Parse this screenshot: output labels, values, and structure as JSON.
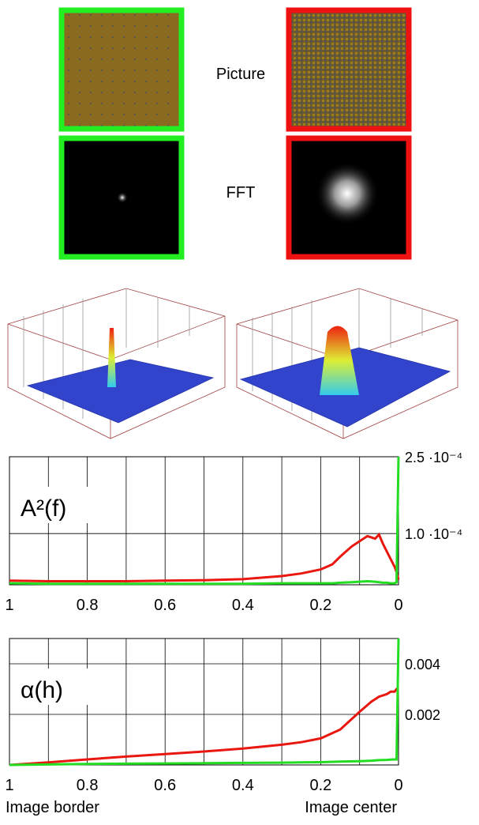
{
  "labels": {
    "picture": "Picture",
    "fft": "FFT"
  },
  "chart_data": [
    {
      "type": "line",
      "title": "A²(f)",
      "x": [
        1,
        0.9,
        0.8,
        0.7,
        0.6,
        0.5,
        0.4,
        0.3,
        0.25,
        0.2,
        0.17,
        0.15,
        0.12,
        0.1,
        0.08,
        0.06,
        0.05,
        0.04,
        0.03,
        0.02,
        0.01,
        0.005,
        0
      ],
      "series": [
        {
          "name": "red",
          "color": "#e8170f",
          "values": [
            8e-06,
            7e-06,
            7e-06,
            7e-06,
            8e-06,
            9e-06,
            1.1e-05,
            1.7e-05,
            2.2e-05,
            3e-05,
            4e-05,
            5.5e-05,
            7.5e-05,
            8.5e-05,
            9.5e-05,
            9e-05,
            9.8e-05,
            8e-05,
            6.5e-05,
            5e-05,
            3.5e-05,
            2.5e-05,
            1e-05
          ]
        },
        {
          "name": "green",
          "color": "#22dd22",
          "values": [
            3e-06,
            2e-06,
            2e-06,
            2e-06,
            2e-06,
            2e-06,
            2e-06,
            3e-06,
            3e-06,
            3e-06,
            3e-06,
            4e-06,
            5e-06,
            6e-06,
            7e-06,
            6e-06,
            5e-06,
            4e-06,
            4e-06,
            3e-06,
            3e-06,
            5e-06,
            0.00025
          ]
        }
      ],
      "xlim": [
        1,
        0
      ],
      "xticks": [
        1,
        0.8,
        0.6,
        0.4,
        0.2,
        0
      ],
      "ylim": [
        0,
        0.00025
      ],
      "yticks": [
        {
          "value": 0.00025,
          "label": "2.5 ·10⁻⁴"
        },
        {
          "value": 0.0001,
          "label": "1.0 ·10⁻⁴"
        }
      ],
      "grid": true
    },
    {
      "type": "line",
      "title": "α(h)",
      "x": [
        1,
        0.9,
        0.8,
        0.7,
        0.6,
        0.5,
        0.4,
        0.3,
        0.25,
        0.2,
        0.15,
        0.1,
        0.07,
        0.05,
        0.03,
        0.02,
        0.01,
        0.005,
        0
      ],
      "series": [
        {
          "name": "red",
          "color": "#e8170f",
          "values": [
            0,
            0.0001,
            0.00022,
            0.00033,
            0.00043,
            0.00053,
            0.00065,
            0.0008,
            0.0009,
            0.00105,
            0.0014,
            0.0021,
            0.0025,
            0.0027,
            0.0028,
            0.0029,
            0.0029,
            0.003,
            0.003
          ]
        },
        {
          "name": "green",
          "color": "#22dd22",
          "values": [
            0,
            2e-05,
            4e-05,
            5e-05,
            6e-05,
            7e-05,
            8e-05,
            9e-05,
            0.0001,
            0.00011,
            0.00013,
            0.00015,
            0.00017,
            0.00019,
            0.0002,
            0.00021,
            0.00022,
            0.00022,
            0.005
          ]
        }
      ],
      "xlim": [
        1,
        0
      ],
      "xticks": [
        1,
        0.8,
        0.6,
        0.4,
        0.2,
        0
      ],
      "ylim": [
        0,
        0.005
      ],
      "yticks": [
        0.004,
        0.002
      ],
      "grid": true,
      "x_label_left": "Image border",
      "x_label_right": "Image center"
    }
  ]
}
